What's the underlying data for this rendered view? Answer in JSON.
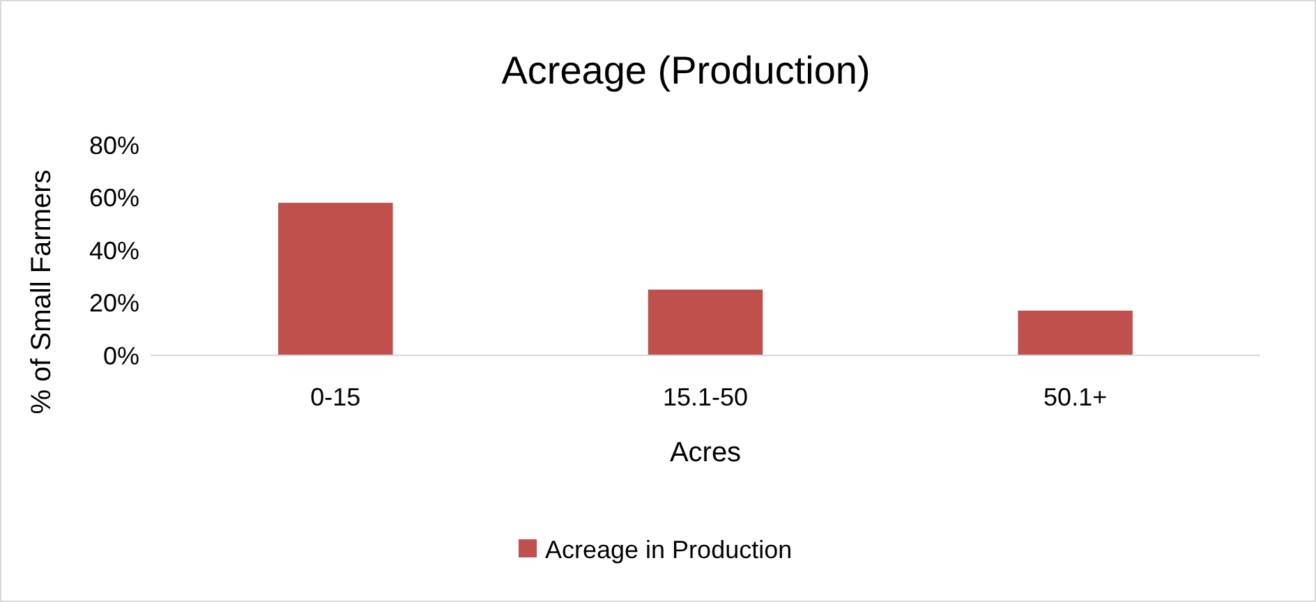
{
  "chart_data": {
    "type": "bar",
    "title": "Acreage (Production)",
    "xlabel": "Acres",
    "ylabel": "% of Small Farmers",
    "categories": [
      "0-15",
      "15.1-50",
      "50.1+"
    ],
    "series": [
      {
        "name": "Acreage in Production",
        "color": "#c0504d",
        "values": [
          58,
          25,
          17
        ]
      }
    ],
    "ylim": [
      0,
      80
    ],
    "yticks": [
      {
        "value": 0,
        "label": "0%"
      },
      {
        "value": 20,
        "label": "20%"
      },
      {
        "value": 40,
        "label": "40%"
      },
      {
        "value": 60,
        "label": "60%"
      },
      {
        "value": 80,
        "label": "80%"
      }
    ],
    "grid": false,
    "legend": "bottom"
  }
}
